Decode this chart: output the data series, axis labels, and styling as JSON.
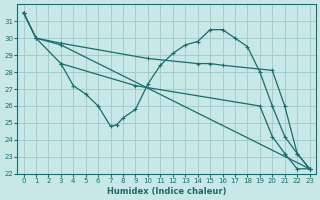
{
  "xlabel": "Humidex (Indice chaleur)",
  "bg_color": "#c8e8e8",
  "grid_color": "#a0c8c8",
  "line_color": "#1a6b6b",
  "xlim": [
    -0.5,
    23.5
  ],
  "ylim": [
    22,
    32
  ],
  "yticks": [
    22,
    23,
    24,
    25,
    26,
    27,
    28,
    29,
    30,
    31
  ],
  "xticks": [
    0,
    1,
    2,
    3,
    4,
    5,
    6,
    7,
    8,
    9,
    10,
    11,
    12,
    13,
    14,
    15,
    16,
    17,
    18,
    19,
    20,
    21,
    22,
    23
  ],
  "lines": [
    {
      "x": [
        0,
        1,
        3,
        4,
        5,
        6,
        7,
        7.5,
        8,
        9,
        10,
        11,
        12,
        13,
        14,
        15,
        16,
        17,
        18,
        19,
        20,
        21,
        22,
        23
      ],
      "y": [
        31.5,
        30.0,
        28.5,
        27.2,
        26.7,
        26.0,
        24.8,
        24.9,
        25.3,
        25.8,
        27.3,
        28.4,
        29.1,
        29.6,
        29.8,
        30.5,
        30.5,
        30.0,
        29.5,
        28.0,
        26.0,
        24.2,
        23.2,
        22.3
      ]
    },
    {
      "x": [
        0,
        1,
        3,
        10,
        14,
        15,
        16,
        20,
        21,
        22,
        23
      ],
      "y": [
        31.5,
        30.0,
        29.7,
        28.8,
        28.5,
        28.5,
        28.4,
        28.1,
        26.0,
        23.2,
        22.3
      ]
    },
    {
      "x": [
        0,
        1,
        3,
        23
      ],
      "y": [
        31.5,
        30.0,
        29.6,
        22.3
      ]
    },
    {
      "x": [
        3,
        9,
        19,
        20,
        21,
        22,
        23
      ],
      "y": [
        28.5,
        27.2,
        26.0,
        24.2,
        23.2,
        22.3,
        22.3
      ]
    }
  ]
}
